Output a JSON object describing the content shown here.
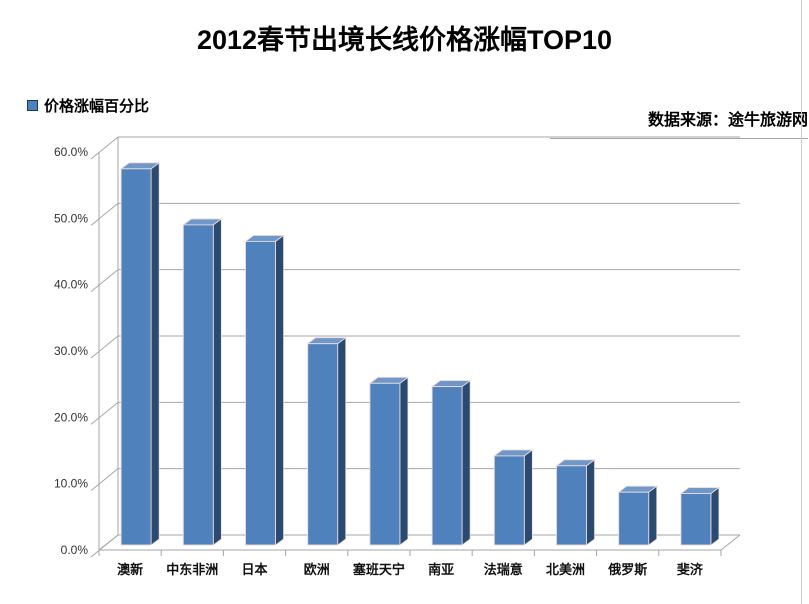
{
  "title": "2012春节出境长线价格涨幅TOP10",
  "legend": {
    "label": "价格涨幅百分比",
    "marker_color": "#4F81BD"
  },
  "source": "数据来源：途牛旅游网",
  "chart_data": {
    "type": "bar",
    "style": "3d-column",
    "title": "2012春节出境长线价格涨幅TOP10",
    "series_name": "价格涨幅百分比",
    "categories": [
      "澳新",
      "中东非洲",
      "日本",
      "欧洲",
      "塞班天宁",
      "南亚",
      "法瑞意",
      "北美洲",
      "俄罗斯",
      "斐济"
    ],
    "values": [
      57,
      48.5,
      46,
      30.5,
      24.5,
      24,
      13.5,
      12,
      8,
      7.8
    ],
    "unit": "%",
    "ylim": [
      0,
      60
    ],
    "ytick_step": 10,
    "ytick_labels": [
      "0.0%",
      "10.0%",
      "20.0%",
      "30.0%",
      "40.0%",
      "50.0%",
      "60.0%"
    ],
    "grid": true,
    "legend_position": "top-left",
    "colors": {
      "bar_front": "#4F81BD",
      "bar_side": "#2B4A72",
      "bar_top": "#6F97C9",
      "bar_edge": "#EADBDB",
      "gridline": "#A6A6A6",
      "axis": "#A6A6A6",
      "tick_label": "#333333",
      "category_label": "#111111"
    }
  }
}
